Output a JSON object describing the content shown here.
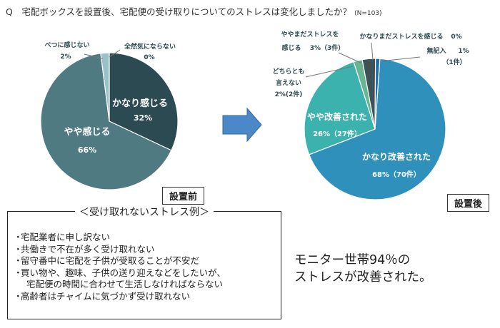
{
  "question": "Q　宅配ボックスを設置後、宅配便の受け取りについてのストレスは変化しましたか？",
  "sample_note": "(N=103)",
  "before_label": "設置前",
  "after_label": "設置後",
  "examples_title": "＜受け取れないストレス例＞",
  "examples": [
    {
      "bullet": "・",
      "text": "宅配業者に申し訳ない"
    },
    {
      "bullet": "・",
      "text": "共働きで不在が多く受け取れない"
    },
    {
      "bullet": "・",
      "text": "留守番中に宅配を子供が受取ることが不安だ"
    },
    {
      "bullet": "・",
      "text": "買い物や、趣味、子供の送り迎えなどをしたいが、"
    },
    {
      "bullet": "",
      "text": "宅配便の時間に合わせて生活しなければならない"
    },
    {
      "bullet": "・",
      "text": "高齢者はチャイムに気づかず受け取れない"
    }
  ],
  "conclusion": [
    "モニター世帯94％の",
    "ストレスが改善された。"
  ],
  "chart_data": [
    {
      "type": "pie",
      "title": "設置前",
      "slices": [
        {
          "label": "かなり感じる",
          "value": 32,
          "value_text": "32%",
          "color": "#2c4a52"
        },
        {
          "label": "やや感じる",
          "value": 66,
          "value_text": "66%",
          "color": "#4f7a82"
        },
        {
          "label": "べつに感じない",
          "value": 2,
          "value_text": "2%",
          "color": "#98c1c8"
        },
        {
          "label": "全然気にならない",
          "value": 0,
          "value_text": "0%",
          "color": "#bcd4d8"
        }
      ]
    },
    {
      "type": "pie",
      "title": "設置後",
      "slices": [
        {
          "label": "かなり改善された",
          "value": 68,
          "value_text": "68%（70件）",
          "color": "#2f91bb"
        },
        {
          "label": "やや改善された",
          "value": 26,
          "value_text": "26%（27件）",
          "color": "#3bb2ae"
        },
        {
          "label": "どちらとも言えない",
          "value": 2,
          "value_text": "2%(2件)",
          "color": "#68b594"
        },
        {
          "label": "ややまだストレスを感じる",
          "value": 3,
          "value_text": "3%（3件）",
          "color": "#3e5157"
        },
        {
          "label": "かなりまだストレスを感じる",
          "value": 0,
          "value_text": "0%",
          "color": "#1c2b30"
        },
        {
          "label": "無記入",
          "value": 1,
          "value_text": "1%（1件）",
          "color": "#1b6fa7"
        }
      ]
    }
  ]
}
